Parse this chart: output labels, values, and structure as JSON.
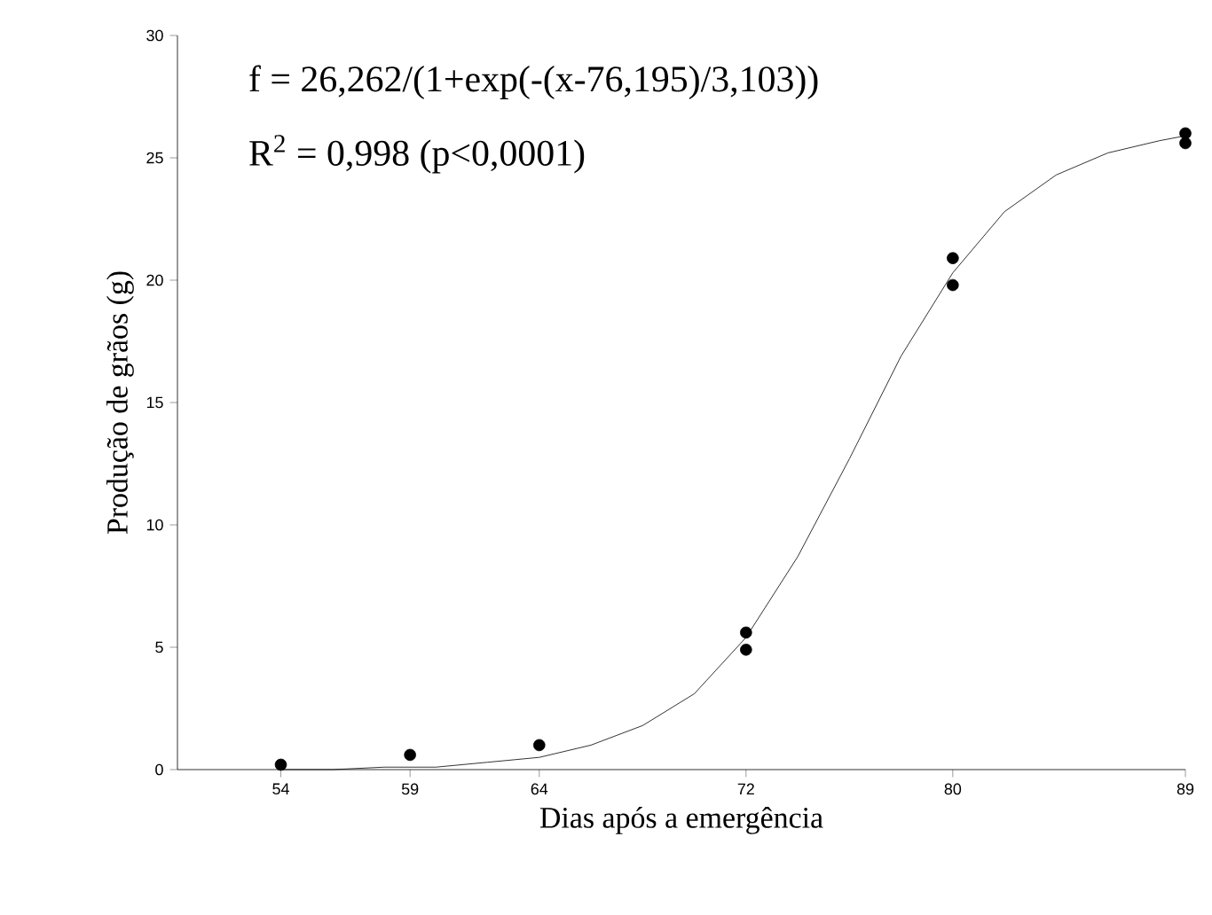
{
  "chart_data": {
    "type": "scatter",
    "xlabel": "Dias após a emergência",
    "ylabel": "Produção de grãos (g)",
    "annotations": [
      "f = 26,262/(1+exp(-(x-76,195)/3,103))",
      "R$^{2}$ = 0,998 (p<0,0001)"
    ],
    "xlim": [
      50,
      89
    ],
    "xticks": [
      54,
      59,
      64,
      72,
      80,
      89
    ],
    "ylim": [
      0,
      30
    ],
    "yticks": [
      0,
      5,
      10,
      15,
      20,
      25,
      30
    ],
    "marker": "circle",
    "series": [
      {
        "color": "#000000",
        "x": [
          54,
          59,
          64,
          72,
          72,
          80,
          80,
          89,
          89
        ],
        "values": [
          0.2,
          0.6,
          1.0,
          4.9,
          5.6,
          19.8,
          20.9,
          25.6,
          26.0
        ]
      },
      {
        "type": "line",
        "color": "#000000",
        "marker": "none",
        "x": [
          54,
          56,
          58,
          60,
          62,
          64,
          66,
          68,
          70,
          72,
          74,
          76,
          78,
          80,
          82,
          84,
          86,
          88,
          89
        ],
        "values": [
          0.0,
          0.0,
          0.1,
          0.1,
          0.3,
          0.5,
          1.0,
          1.8,
          3.1,
          5.4,
          8.7,
          12.7,
          16.9,
          20.3,
          22.8,
          24.3,
          25.2,
          25.7,
          25.9
        ]
      }
    ]
  }
}
